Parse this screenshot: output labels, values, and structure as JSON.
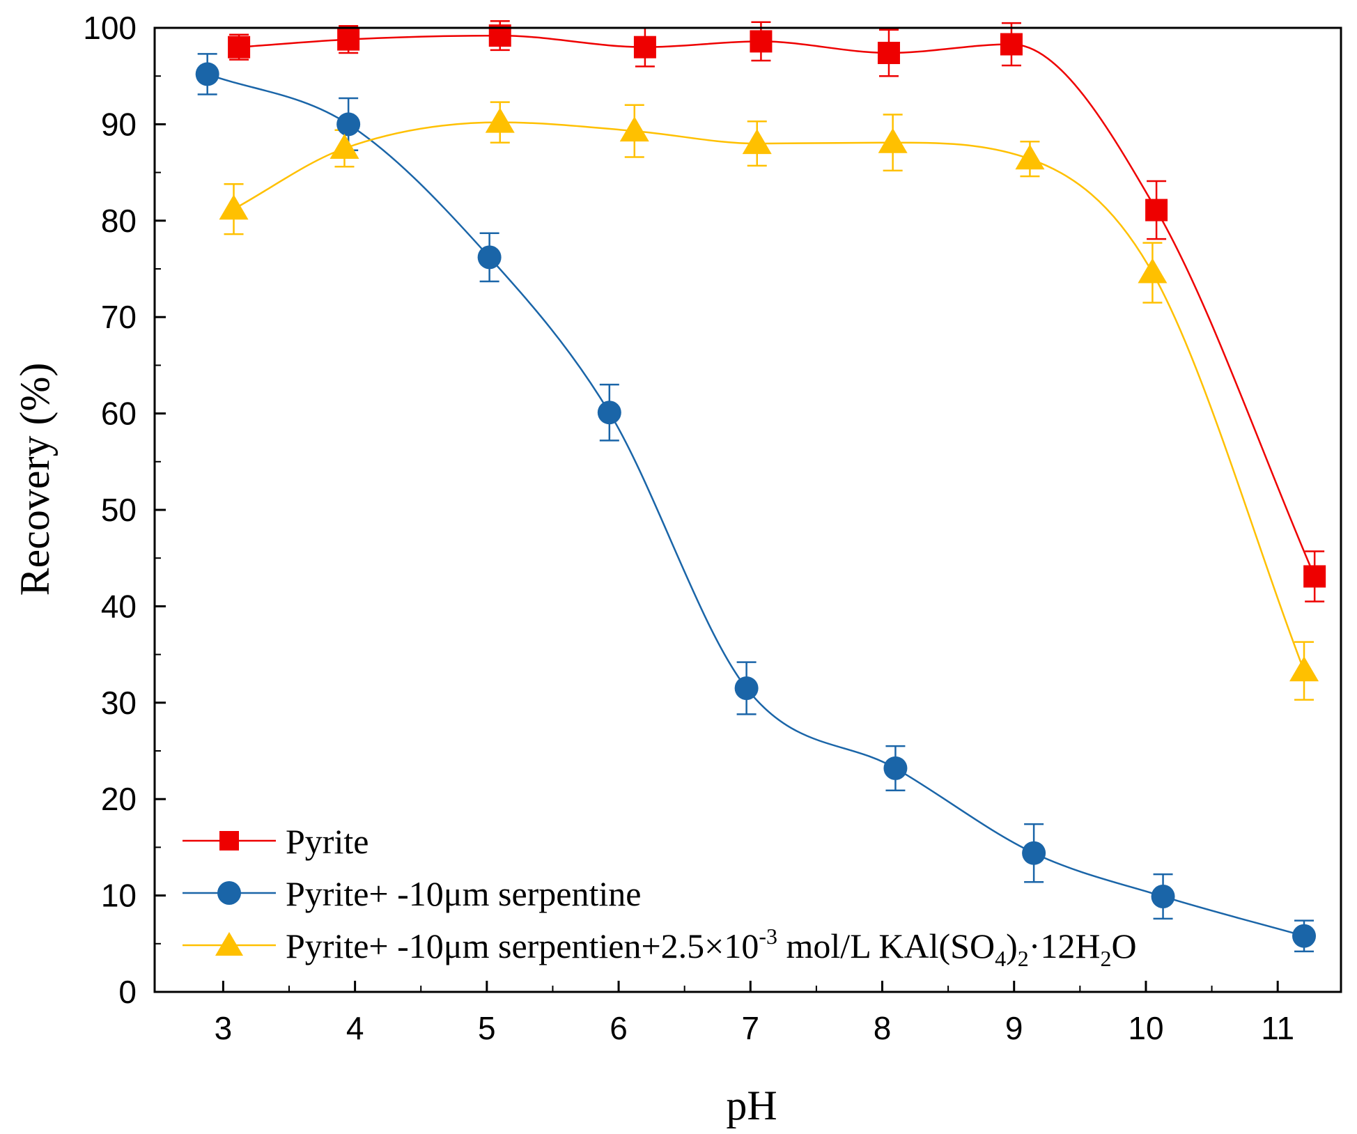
{
  "chart_data": {
    "type": "line",
    "title": "",
    "xlabel": "pH",
    "ylabel": "Recovery (%)",
    "xlim": [
      2.48,
      11.48
    ],
    "ylim": [
      0,
      100
    ],
    "xticks": [
      3,
      4,
      5,
      6,
      7,
      8,
      9,
      10,
      11
    ],
    "yticks": [
      0,
      10,
      20,
      30,
      40,
      50,
      60,
      70,
      80,
      90,
      100
    ],
    "grid": false,
    "legend_position": "bottom-left",
    "series": [
      {
        "name": "Pyrite",
        "color": "#ee0000",
        "marker": "square",
        "x": [
          3.12,
          3.95,
          5.1,
          6.2,
          7.08,
          8.05,
          8.98,
          10.08,
          11.28
        ],
        "y": [
          98.0,
          98.8,
          99.2,
          98.0,
          98.6,
          97.4,
          98.3,
          81.1,
          43.1
        ],
        "error": [
          1.3,
          1.4,
          1.5,
          2.0,
          2.0,
          2.4,
          2.2,
          3.0,
          2.6
        ]
      },
      {
        "name": "Pyrite+ -10μm serpentine",
        "color": "#1a65a8",
        "marker": "circle",
        "x": [
          2.88,
          3.95,
          5.02,
          5.93,
          6.97,
          8.1,
          9.15,
          10.13,
          11.2
        ],
        "y": [
          95.2,
          90.0,
          76.2,
          60.1,
          31.5,
          23.2,
          14.4,
          9.9,
          5.8
        ],
        "error": [
          2.1,
          2.7,
          2.5,
          2.9,
          2.7,
          2.3,
          3.0,
          2.3,
          1.6
        ]
      },
      {
        "name": "Pyrite+ -10μm serpentien+2.5×10-3 mol/L KAl(SO4)2·12H2O",
        "color": "#ffc000",
        "marker": "triangle",
        "x": [
          3.08,
          3.92,
          5.1,
          6.12,
          7.05,
          8.08,
          9.12,
          10.05,
          11.2
        ],
        "y": [
          81.2,
          87.5,
          90.2,
          89.3,
          88.0,
          88.1,
          86.4,
          74.6,
          33.3
        ],
        "error": [
          2.6,
          1.9,
          2.1,
          2.7,
          2.3,
          2.9,
          1.8,
          3.1,
          3.0
        ]
      }
    ]
  },
  "legend": {
    "label_1": "Pyrite",
    "label_2": "Pyrite+ -10μm serpentine",
    "label_3_main": "Pyrite+ -10μm serpentien+2.5×10",
    "label_3_exp": "-3",
    "label_3_unit": " mol/L KAl(SO",
    "label_3_sub1": "4",
    "label_3_close": ")",
    "label_3_sub2": "2",
    "label_3_hydrate": "·12H",
    "label_3_sub3": "2",
    "label_3_end": "O"
  }
}
